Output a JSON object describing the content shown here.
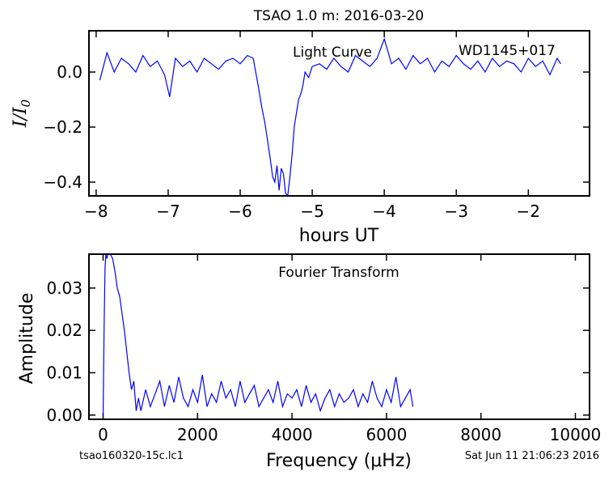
{
  "figure": {
    "title": "TSAO 1.0 m:  2016-03-20",
    "footer_left": "tsao160320-15c.lc1",
    "footer_right": "Sat Jun 11 21:06:23 2016"
  },
  "colors": {
    "line": "#0000ff",
    "axes": "#000000"
  },
  "chart_data": [
    {
      "type": "line",
      "annotations": [
        "Light Curve",
        "WD1145+017"
      ],
      "xlabel": "hours UT",
      "ylabel": "I/I0",
      "xlim": [
        -8.1,
        -1.15
      ],
      "ylim": [
        -0.45,
        0.15
      ],
      "xticks": [
        -8,
        -7,
        -6,
        -5,
        -4,
        -3,
        -2
      ],
      "xtick_labels": [
        "−8",
        "−7",
        "−6",
        "−5",
        "−4",
        "−3",
        "−2"
      ],
      "yticks": [
        0.0,
        -0.2,
        -0.4
      ],
      "ytick_labels": [
        "0.0",
        "−0.2",
        "−0.4"
      ],
      "series": [
        {
          "x": [
            -7.95,
            -7.85,
            -7.75,
            -7.65,
            -7.55,
            -7.45,
            -7.35,
            -7.25,
            -7.15,
            -7.05,
            -6.98,
            -6.9,
            -6.8,
            -6.7,
            -6.6,
            -6.5,
            -6.4,
            -6.3,
            -6.2,
            -6.1,
            -6.0,
            -5.9,
            -5.82,
            -5.75,
            -5.7,
            -5.66,
            -5.62,
            -5.58,
            -5.55,
            -5.52,
            -5.49,
            -5.46,
            -5.43,
            -5.4,
            -5.37,
            -5.34,
            -5.31,
            -5.28,
            -5.25,
            -5.22,
            -5.19,
            -5.16,
            -5.13,
            -5.1,
            -5.05,
            -5.0,
            -4.9,
            -4.8,
            -4.7,
            -4.6,
            -4.5,
            -4.4,
            -4.3,
            -4.2,
            -4.1,
            -4.0,
            -3.9,
            -3.8,
            -3.7,
            -3.6,
            -3.5,
            -3.4,
            -3.3,
            -3.2,
            -3.1,
            -3.0,
            -2.9,
            -2.8,
            -2.7,
            -2.6,
            -2.5,
            -2.4,
            -2.3,
            -2.2,
            -2.1,
            -2.0,
            -1.9,
            -1.8,
            -1.7,
            -1.6,
            -1.55
          ],
          "y": [
            -0.03,
            0.07,
            0.0,
            0.05,
            0.03,
            0.0,
            0.06,
            0.02,
            0.04,
            -0.01,
            -0.09,
            0.05,
            0.02,
            0.04,
            0.0,
            0.05,
            0.03,
            0.01,
            0.04,
            0.05,
            0.03,
            0.06,
            0.05,
            -0.05,
            -0.13,
            -0.18,
            -0.25,
            -0.32,
            -0.38,
            -0.4,
            -0.34,
            -0.43,
            -0.35,
            -0.37,
            -0.44,
            -0.45,
            -0.38,
            -0.3,
            -0.2,
            -0.15,
            -0.1,
            -0.08,
            -0.05,
            0.0,
            -0.02,
            0.02,
            0.03,
            0.01,
            0.05,
            0.02,
            0.0,
            0.06,
            0.04,
            0.02,
            0.05,
            0.12,
            0.03,
            0.05,
            0.01,
            0.06,
            0.03,
            0.05,
            0.0,
            0.04,
            0.02,
            0.06,
            0.03,
            0.01,
            0.04,
            0.0,
            0.05,
            0.02,
            0.04,
            0.03,
            0.0,
            0.05,
            0.02,
            0.04,
            -0.01,
            0.05,
            0.03
          ]
        }
      ]
    },
    {
      "type": "line",
      "annotations": [
        "Fourier Transform"
      ],
      "xlabel": "Frequency (μHz)",
      "ylabel": "Amplitude",
      "xlim": [
        -300,
        10300
      ],
      "ylim": [
        -0.001,
        0.038
      ],
      "xticks": [
        0,
        2000,
        4000,
        6000,
        8000,
        10000
      ],
      "xtick_labels": [
        "0",
        "2000",
        "4000",
        "6000",
        "8000",
        "10000"
      ],
      "yticks": [
        0.0,
        0.01,
        0.02,
        0.03
      ],
      "ytick_labels": [
        "0.00",
        "0.01",
        "0.02",
        "0.03"
      ],
      "series": [
        {
          "x": [
            0,
            20,
            40,
            60,
            80,
            100,
            150,
            200,
            250,
            300,
            350,
            400,
            450,
            500,
            550,
            600,
            650,
            700,
            750,
            800,
            900,
            1000,
            1100,
            1200,
            1300,
            1400,
            1500,
            1600,
            1700,
            1800,
            1900,
            2000,
            2100,
            2200,
            2300,
            2400,
            2500,
            2600,
            2700,
            2800,
            2900,
            3000,
            3100,
            3200,
            3300,
            3400,
            3500,
            3600,
            3700,
            3800,
            3900,
            4000,
            4100,
            4200,
            4300,
            4400,
            4500,
            4600,
            4700,
            4800,
            4900,
            5000,
            5100,
            5200,
            5300,
            5400,
            5500,
            5600,
            5700,
            5800,
            5900,
            6000,
            6100,
            6200,
            6300,
            6400,
            6500,
            6560
          ],
          "y": [
            0.0,
            0.02,
            0.035,
            0.038,
            0.037,
            0.038,
            0.038,
            0.037,
            0.034,
            0.03,
            0.028,
            0.024,
            0.02,
            0.015,
            0.01,
            0.006,
            0.008,
            0.001,
            0.004,
            0.001,
            0.006,
            0.002,
            0.005,
            0.008,
            0.002,
            0.007,
            0.003,
            0.009,
            0.004,
            0.002,
            0.006,
            0.003,
            0.0095,
            0.002,
            0.005,
            0.003,
            0.008,
            0.004,
            0.006,
            0.002,
            0.008,
            0.003,
            0.005,
            0.007,
            0.002,
            0.004,
            0.006,
            0.003,
            0.008,
            0.002,
            0.005,
            0.004,
            0.006,
            0.002,
            0.007,
            0.003,
            0.005,
            0.001,
            0.004,
            0.006,
            0.002,
            0.005,
            0.003,
            0.004,
            0.006,
            0.002,
            0.005,
            0.003,
            0.008,
            0.004,
            0.002,
            0.006,
            0.003,
            0.009,
            0.002,
            0.004,
            0.006,
            0.002
          ]
        }
      ]
    }
  ]
}
